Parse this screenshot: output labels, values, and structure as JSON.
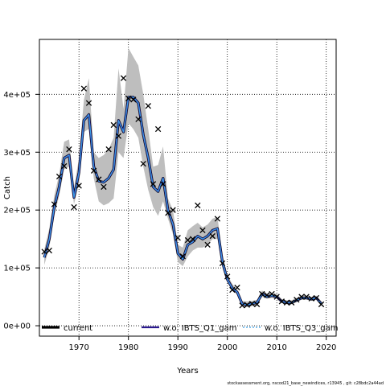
{
  "chart_data": {
    "type": "line",
    "title": "",
    "xlabel": "Years",
    "ylabel": "Catch",
    "xlim": [
      1962,
      2022
    ],
    "ylim": [
      -18000,
      495000
    ],
    "x_ticks": [
      1970,
      1980,
      1990,
      2000,
      2010,
      2020
    ],
    "y_ticks": [
      0,
      100000,
      200000,
      300000,
      400000
    ],
    "y_tick_labels": [
      "0e+00",
      "1e+05",
      "2e+05",
      "3e+05",
      "4e+05"
    ],
    "grid": "dotted",
    "legend_placement": "bottom",
    "colors": {
      "current": "#000000",
      "ibts_q1": "#2b1a8f",
      "ibts_q3": "#3aa0e6",
      "band": "#bebebe",
      "observed": "#000000"
    },
    "x": [
      1963,
      1964,
      1965,
      1966,
      1967,
      1968,
      1969,
      1970,
      1971,
      1972,
      1973,
      1974,
      1975,
      1976,
      1977,
      1978,
      1979,
      1980,
      1981,
      1982,
      1983,
      1984,
      1985,
      1986,
      1987,
      1988,
      1989,
      1990,
      1991,
      1992,
      1993,
      1994,
      1995,
      1996,
      1997,
      1998,
      1999,
      2000,
      2001,
      2002,
      2003,
      2004,
      2005,
      2006,
      2007,
      2008,
      2009,
      2010,
      2011,
      2012,
      2013,
      2014,
      2015,
      2016,
      2017,
      2018,
      2019
    ],
    "series": [
      {
        "name": "current",
        "values": [
          118000,
          150000,
          205000,
          240000,
          290000,
          295000,
          222000,
          265000,
          355000,
          365000,
          275000,
          250000,
          248000,
          255000,
          270000,
          355000,
          335000,
          395000,
          395000,
          385000,
          330000,
          290000,
          240000,
          232000,
          255000,
          200000,
          175000,
          125000,
          115000,
          140000,
          145000,
          155000,
          150000,
          155000,
          165000,
          168000,
          110000,
          80000,
          65000,
          58000,
          38000,
          36000,
          38000,
          40000,
          55000,
          50000,
          52000,
          50000,
          42000,
          40000,
          40000,
          44000,
          48000,
          48000,
          46000,
          48000,
          38000
        ]
      },
      {
        "name": "w.o. IBTS_Q1_gam",
        "values": [
          118000,
          150000,
          205000,
          240000,
          290000,
          295000,
          222000,
          265000,
          355000,
          365000,
          275000,
          250000,
          248000,
          255000,
          270000,
          355000,
          335000,
          395000,
          395000,
          385000,
          330000,
          290000,
          240000,
          232000,
          255000,
          200000,
          175000,
          125000,
          115000,
          140000,
          145000,
          155000,
          150000,
          155000,
          165000,
          168000,
          110000,
          80000,
          65000,
          58000,
          38000,
          36000,
          38000,
          40000,
          55000,
          50000,
          52000,
          50000,
          42000,
          40000,
          40000,
          44000,
          48000,
          48000,
          46000,
          48000,
          38000
        ]
      },
      {
        "name": "w.o. IBTS_Q3_gam",
        "values": [
          118000,
          150000,
          205000,
          240000,
          290000,
          295000,
          222000,
          265000,
          355000,
          365000,
          275000,
          250000,
          248000,
          255000,
          270000,
          355000,
          335000,
          395000,
          395000,
          385000,
          330000,
          290000,
          240000,
          232000,
          255000,
          200000,
          175000,
          125000,
          115000,
          140000,
          145000,
          155000,
          150000,
          155000,
          165000,
          168000,
          110000,
          80000,
          65000,
          58000,
          38000,
          36000,
          38000,
          40000,
          55000,
          50000,
          52000,
          50000,
          42000,
          40000,
          40000,
          44000,
          48000,
          48000,
          46000,
          48000,
          38000
        ]
      }
    ],
    "band_lower": [
      105000,
      135000,
      190000,
      225000,
      270000,
      275000,
      210000,
      245000,
      335000,
      340000,
      255000,
      215000,
      208000,
      212000,
      220000,
      300000,
      290000,
      350000,
      340000,
      325000,
      275000,
      235000,
      205000,
      190000,
      215000,
      185000,
      158000,
      110000,
      103000,
      120000,
      130000,
      135000,
      135000,
      140000,
      150000,
      150000,
      100000,
      75000,
      60000,
      54000,
      33000,
      32000,
      34000,
      36000,
      50000,
      47000,
      48000,
      47000,
      39000,
      37000,
      37000,
      41000,
      45000,
      45000,
      43000,
      45000,
      35000
    ],
    "band_upper": [
      132000,
      168000,
      225000,
      262000,
      318000,
      322000,
      238000,
      290000,
      390000,
      428000,
      300000,
      290000,
      295000,
      305000,
      325000,
      445000,
      375000,
      480000,
      465000,
      450000,
      400000,
      340000,
      275000,
      278000,
      310000,
      220000,
      200000,
      140000,
      135000,
      165000,
      172000,
      178000,
      170000,
      175000,
      185000,
      188000,
      122000,
      88000,
      72000,
      63000,
      43000,
      42000,
      43000,
      45000,
      61000,
      55000,
      57000,
      55000,
      46000,
      44000,
      44000,
      48000,
      52000,
      52000,
      50000,
      52000,
      42000
    ],
    "observed": {
      "x": [
        1963,
        1964,
        1965,
        1966,
        1967,
        1968,
        1969,
        1970,
        1971,
        1972,
        1973,
        1974,
        1975,
        1976,
        1977,
        1978,
        1979,
        1980,
        1981,
        1982,
        1983,
        1984,
        1985,
        1986,
        1987,
        1988,
        1989,
        1990,
        1991,
        1992,
        1993,
        1994,
        1995,
        1996,
        1997,
        1998,
        1999,
        2000,
        2001,
        2002,
        2003,
        2004,
        2005,
        2006,
        2007,
        2008,
        2009,
        2010,
        2011,
        2012,
        2013,
        2014,
        2015,
        2016,
        2017,
        2018,
        2019
      ],
      "y": [
        128000,
        130000,
        210000,
        258000,
        276000,
        305000,
        205000,
        242000,
        410000,
        385000,
        268000,
        253000,
        240000,
        305000,
        347000,
        328000,
        428000,
        393000,
        391000,
        357000,
        280000,
        380000,
        245000,
        340000,
        245000,
        195000,
        200000,
        152000,
        120000,
        148000,
        150000,
        208000,
        165000,
        140000,
        155000,
        185000,
        108000,
        85000,
        62000,
        66000,
        35000,
        36000,
        38000,
        37000,
        55000,
        53000,
        55000,
        50000,
        42000,
        40000,
        40000,
        45000,
        50000,
        50000,
        47000,
        48000,
        37000
      ]
    }
  },
  "legend": [
    {
      "label": "current",
      "color": "#000000"
    },
    {
      "label": "w.o. IBTS_Q1_gam",
      "color": "#2b1a8f"
    },
    {
      "label": "w.o. IBTS_Q3_gam",
      "color": "#3aa0e6"
    }
  ],
  "footer": "stockassessment.org, nscod21_base_newindices, r13945 , git: c28bdc2a44ad"
}
